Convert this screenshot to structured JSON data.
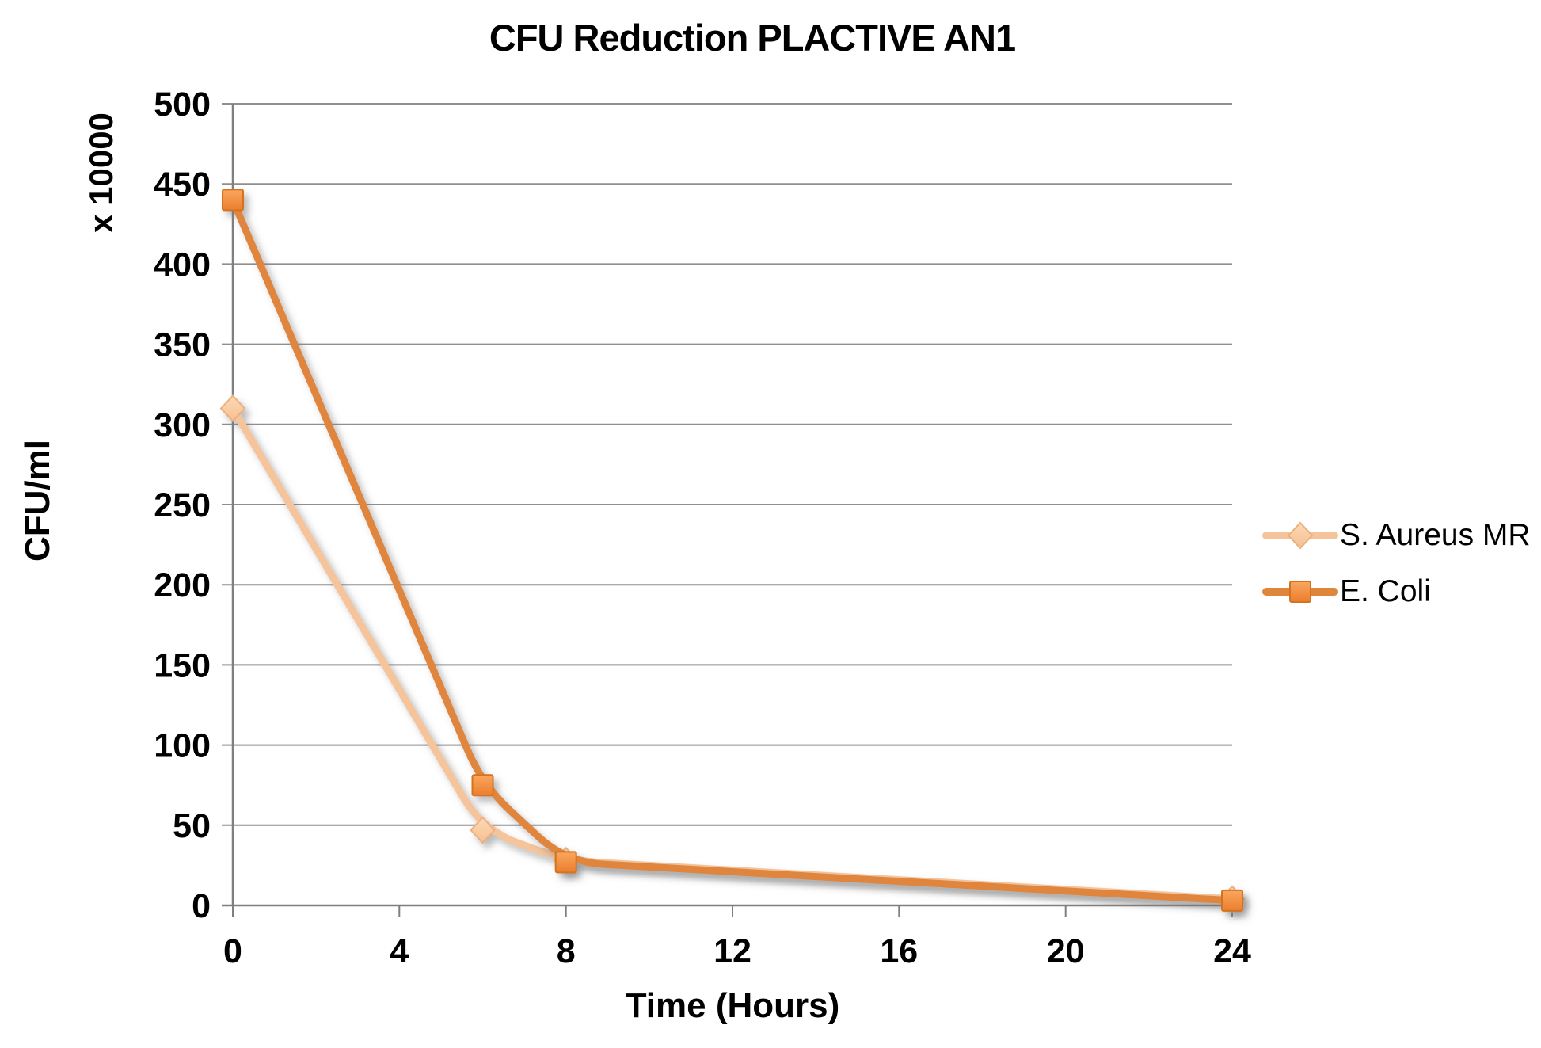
{
  "chart_data": {
    "type": "line",
    "title": "CFU Reduction PLACTIVE AN1",
    "xlabel": "Time (Hours)",
    "ylabel": "CFU/ml",
    "ylabel_unit": "x 10000",
    "xlim": [
      0,
      24
    ],
    "ylim": [
      0,
      500
    ],
    "x_ticks": [
      0,
      4,
      8,
      12,
      16,
      20,
      24
    ],
    "y_ticks": [
      0,
      50,
      100,
      150,
      200,
      250,
      300,
      350,
      400,
      450,
      500
    ],
    "grid": "horizontal-only",
    "legend_position": "right",
    "line_style": "smooth",
    "x": [
      0,
      6,
      8,
      24
    ],
    "series": [
      {
        "name": "S. Aureus MR",
        "marker": "diamond",
        "color": "#F5C49B",
        "marker_fill_top": "#FCD9B6",
        "marker_fill_bottom": "#F6C091",
        "marker_stroke": "#EDAF7E",
        "values": [
          310,
          47,
          28,
          4
        ]
      },
      {
        "name": "E. Coli",
        "marker": "square",
        "color": "#E0853C",
        "marker_fill_top": "#F9A75F",
        "marker_fill_bottom": "#EC7D2D",
        "marker_stroke": "#D4731F",
        "values": [
          440,
          75,
          27,
          3
        ]
      }
    ],
    "colors": {
      "gridline": "#8F8F8F",
      "axis": "#7F7F7F",
      "text": "#000000",
      "background": "#FFFFFF"
    }
  }
}
